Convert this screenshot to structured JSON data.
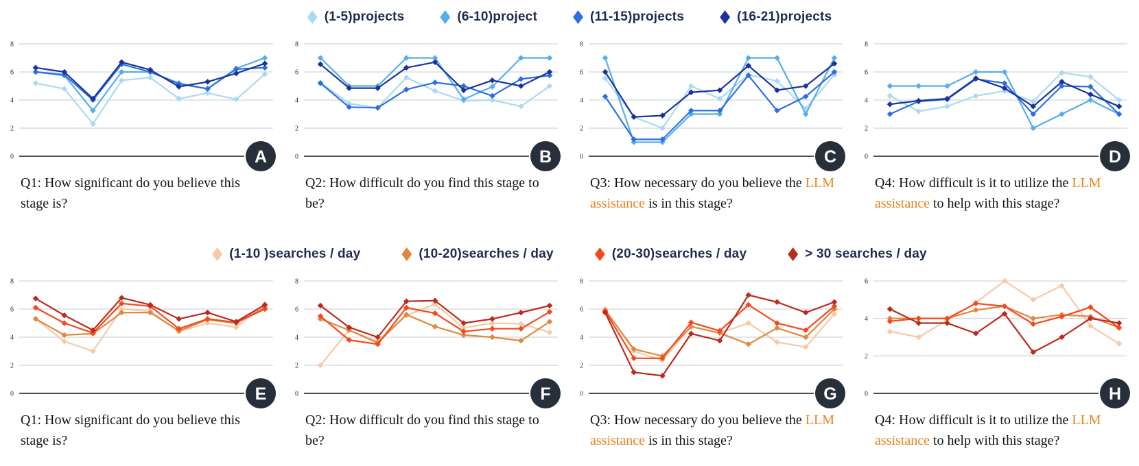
{
  "figure": {
    "accent_color": "#E8821C",
    "badge_bg": "#262F3A",
    "grid_color": "#D9DDE0",
    "axis_color": "#4F4F4F",
    "tick_color": "#2B2B2B"
  },
  "legends": [
    {
      "name": "projects",
      "items": [
        {
          "label": "(1-5)projects",
          "color": "#AADAF2"
        },
        {
          "label": "(6-10)project",
          "color": "#55AEE9"
        },
        {
          "label": "(11-15)projects",
          "color": "#2D6FE0"
        },
        {
          "label": "(16-21)projects",
          "color": "#1A339C"
        }
      ]
    },
    {
      "name": "searches",
      "items": [
        {
          "label": "(1-10 )searches / day",
          "color": "#F7C9A6"
        },
        {
          "label": "(10-20)searches / day",
          "color": "#E0883C"
        },
        {
          "label": "(20-30)searches / day",
          "color": "#F5481F"
        },
        {
          "label": "> 30 searches / day",
          "color": "#BB2A1C"
        }
      ]
    }
  ],
  "chart_data": [
    {
      "panel": "A",
      "type": "line",
      "ylim": [
        0,
        8
      ],
      "yticks": [
        8,
        6,
        4,
        2,
        0
      ],
      "xlabel": "",
      "ylabel": "",
      "grid": true,
      "caption_parts": [
        {
          "text": "Q1: How significant do you believe this stage is?",
          "accent": false
        }
      ],
      "series": [
        {
          "name": "(1-5)projects",
          "color": "#AADAF2",
          "values": [
            5.2,
            4.8,
            2.3,
            5.4,
            5.6,
            4.1,
            4.5,
            4.05,
            5.85
          ]
        },
        {
          "name": "(6-10)project",
          "color": "#55AEE9",
          "values": [
            6.0,
            5.75,
            3.25,
            6.0,
            6.0,
            5.2,
            4.8,
            6.25,
            7.0
          ]
        },
        {
          "name": "(11-15)projects",
          "color": "#2D6FE0",
          "values": [
            6.0,
            5.8,
            4.0,
            6.55,
            6.0,
            5.15,
            4.8,
            6.2,
            6.3
          ]
        },
        {
          "name": "(16-21)projects",
          "color": "#1A339C",
          "values": [
            6.3,
            6.0,
            4.1,
            6.7,
            6.15,
            4.95,
            5.3,
            5.9,
            6.6
          ]
        }
      ]
    },
    {
      "panel": "B",
      "type": "line",
      "ylim": [
        0,
        8
      ],
      "yticks": [
        8,
        6,
        4,
        2,
        0
      ],
      "xlabel": "",
      "ylabel": "",
      "grid": true,
      "caption_parts": [
        {
          "text": "Q2: How difficult do you find this stage to be?",
          "accent": false
        }
      ],
      "series": [
        {
          "name": "(1-5)projects",
          "color": "#AADAF2",
          "values": [
            5.25,
            3.75,
            3.45,
            5.6,
            4.65,
            3.95,
            4.0,
            3.55,
            5.0
          ]
        },
        {
          "name": "(6-10)project",
          "color": "#55AEE9",
          "values": [
            7.0,
            5.0,
            5.0,
            7.0,
            7.0,
            4.05,
            4.95,
            7.0,
            7.0
          ]
        },
        {
          "name": "(11-15)projects",
          "color": "#2D6FE0",
          "values": [
            5.2,
            3.5,
            3.45,
            4.75,
            5.25,
            5.0,
            4.3,
            5.5,
            5.75
          ]
        },
        {
          "name": "(16-21)projects",
          "color": "#1A339C",
          "values": [
            6.55,
            4.85,
            4.85,
            6.3,
            6.7,
            4.7,
            5.4,
            5.0,
            6.0
          ]
        }
      ]
    },
    {
      "panel": "C",
      "type": "line",
      "ylim": [
        0,
        8
      ],
      "yticks": [
        8,
        6,
        4,
        2,
        0
      ],
      "xlabel": "",
      "ylabel": "",
      "grid": true,
      "caption_parts": [
        {
          "text": "Q3: How necessary do you believe the ",
          "accent": false
        },
        {
          "text": "LLM assistance",
          "accent": true
        },
        {
          "text": " is in this stage?",
          "accent": false
        }
      ],
      "series": [
        {
          "name": "(1-5)projects",
          "color": "#AADAF2",
          "values": [
            5.55,
            2.8,
            2.0,
            5.0,
            4.1,
            5.8,
            5.35,
            3.4,
            5.8
          ]
        },
        {
          "name": "(6-10)project",
          "color": "#55AEE9",
          "values": [
            7.0,
            1.0,
            1.0,
            3.0,
            3.0,
            7.0,
            7.0,
            3.0,
            7.0
          ]
        },
        {
          "name": "(11-15)projects",
          "color": "#2D6FE0",
          "values": [
            4.25,
            1.2,
            1.2,
            3.25,
            3.25,
            5.75,
            3.25,
            4.25,
            6.0
          ]
        },
        {
          "name": "(16-21)projects",
          "color": "#1A339C",
          "values": [
            6.0,
            2.8,
            2.9,
            4.55,
            4.7,
            6.45,
            4.7,
            5.0,
            6.6
          ]
        }
      ]
    },
    {
      "panel": "D",
      "type": "line",
      "ylim": [
        0,
        8
      ],
      "yticks": [
        8,
        6,
        4,
        2,
        0
      ],
      "xlabel": "",
      "ylabel": "",
      "grid": true,
      "caption_parts": [
        {
          "text": "Q4: How difficult is it to utilize the ",
          "accent": false
        },
        {
          "text": "LLM assistance",
          "accent": true
        },
        {
          "text": " to help with this stage?",
          "accent": false
        }
      ],
      "series": [
        {
          "name": "(1-5)projects",
          "color": "#AADAF2",
          "values": [
            4.3,
            3.2,
            3.55,
            4.3,
            4.65,
            3.9,
            5.95,
            5.65,
            4.0
          ]
        },
        {
          "name": "(6-10)project",
          "color": "#55AEE9",
          "values": [
            5.0,
            5.0,
            5.0,
            6.0,
            6.0,
            2.0,
            3.0,
            4.0,
            3.0
          ]
        },
        {
          "name": "(11-15)projects",
          "color": "#2D6FE0",
          "values": [
            3.0,
            3.9,
            4.05,
            5.5,
            5.2,
            3.0,
            5.0,
            4.95,
            3.0
          ]
        },
        {
          "name": "(16-21)projects",
          "color": "#1A339C",
          "values": [
            3.7,
            3.95,
            4.1,
            5.55,
            4.85,
            3.55,
            5.3,
            4.4,
            3.55
          ]
        }
      ]
    },
    {
      "panel": "E",
      "type": "line",
      "ylim": [
        0,
        8
      ],
      "yticks": [
        8,
        6,
        4,
        2,
        0
      ],
      "xlabel": "",
      "ylabel": "",
      "grid": true,
      "caption_parts": [
        {
          "text": "Q1: How significant do you believe this stage is?",
          "accent": false
        }
      ],
      "series": [
        {
          "name": "(1-10 )searches / day",
          "color": "#F7C9A6",
          "values": [
            5.3,
            3.7,
            3.0,
            6.0,
            5.85,
            4.4,
            5.0,
            4.7,
            6.35
          ]
        },
        {
          "name": "(10-20)searches / day",
          "color": "#E0883C",
          "values": [
            5.3,
            4.15,
            4.25,
            5.75,
            5.75,
            4.45,
            5.25,
            5.0,
            6.1
          ]
        },
        {
          "name": "(20-30)searches / day",
          "color": "#F5481F",
          "values": [
            6.1,
            5.0,
            4.3,
            6.4,
            6.2,
            4.6,
            5.3,
            5.05,
            6.0
          ]
        },
        {
          "name": "> 30 searches / day",
          "color": "#BB2A1C",
          "values": [
            6.75,
            5.55,
            4.5,
            6.8,
            6.3,
            5.3,
            5.75,
            5.1,
            6.3
          ]
        }
      ]
    },
    {
      "panel": "F",
      "type": "line",
      "ylim": [
        0,
        8
      ],
      "yticks": [
        8,
        6,
        4,
        2,
        0
      ],
      "xlabel": "",
      "ylabel": "",
      "grid": true,
      "caption_parts": [
        {
          "text": "Q2: How difficult do you find this stage to be?",
          "accent": false
        }
      ],
      "series": [
        {
          "name": "(1-10 )searches / day",
          "color": "#F7C9A6",
          "values": [
            2.0,
            4.5,
            3.7,
            5.55,
            6.35,
            4.65,
            5.0,
            4.95,
            4.35
          ]
        },
        {
          "name": "(10-20)searches / day",
          "color": "#E0883C",
          "values": [
            5.3,
            4.5,
            3.6,
            5.6,
            4.75,
            4.15,
            4.0,
            3.75,
            5.1
          ]
        },
        {
          "name": "(20-30)searches / day",
          "color": "#F5481F",
          "values": [
            5.5,
            3.8,
            3.5,
            6.1,
            5.7,
            4.4,
            4.6,
            4.6,
            5.8
          ]
        },
        {
          "name": "> 30 searches / day",
          "color": "#BB2A1C",
          "values": [
            6.25,
            4.7,
            4.0,
            6.55,
            6.6,
            5.0,
            5.3,
            5.75,
            6.25
          ]
        }
      ]
    },
    {
      "panel": "G",
      "type": "line",
      "ylim": [
        0,
        8
      ],
      "yticks": [
        8,
        6,
        4,
        2,
        0
      ],
      "xlabel": "",
      "ylabel": "",
      "grid": true,
      "caption_parts": [
        {
          "text": "Q3: How necessary do you believe the ",
          "accent": false
        },
        {
          "text": "LLM assistance",
          "accent": true
        },
        {
          "text": " is in this stage?",
          "accent": false
        }
      ],
      "series": [
        {
          "name": "(1-10 )searches / day",
          "color": "#F7C9A6",
          "values": [
            6.0,
            3.0,
            2.35,
            4.75,
            4.3,
            5.0,
            3.65,
            3.3,
            5.65
          ]
        },
        {
          "name": "(10-20)searches / day",
          "color": "#E0883C",
          "values": [
            5.9,
            3.15,
            2.65,
            4.75,
            4.3,
            3.5,
            4.65,
            4.0,
            6.0
          ]
        },
        {
          "name": "(20-30)searches / day",
          "color": "#F5481F",
          "values": [
            5.85,
            2.5,
            2.5,
            5.05,
            4.45,
            6.3,
            5.0,
            4.5,
            6.2
          ]
        },
        {
          "name": "> 30 searches / day",
          "color": "#BB2A1C",
          "values": [
            5.75,
            1.5,
            1.25,
            4.25,
            3.75,
            7.0,
            6.5,
            5.75,
            6.5
          ]
        }
      ]
    },
    {
      "panel": "H",
      "type": "line",
      "ylim": [
        0,
        6
      ],
      "yticks": [
        6,
        4,
        2,
        0
      ],
      "xlabel": "",
      "ylabel": "",
      "grid": true,
      "caption_parts": [
        {
          "text": "Q4: How difficult is it to utilize the ",
          "accent": false
        },
        {
          "text": "LLM assistance",
          "accent": true
        },
        {
          "text": " to help with this stage?",
          "accent": false
        }
      ],
      "series": [
        {
          "name": "(1-10 )searches / day",
          "color": "#F7C9A6",
          "values": [
            3.3,
            3.0,
            3.9,
            4.85,
            6.0,
            5.0,
            5.75,
            3.6,
            2.65
          ]
        },
        {
          "name": "(10-20)searches / day",
          "color": "#E0883C",
          "values": [
            4.0,
            4.0,
            4.0,
            4.45,
            4.65,
            4.0,
            4.2,
            4.1,
            3.5
          ]
        },
        {
          "name": "(20-30)searches / day",
          "color": "#F5481F",
          "values": [
            3.85,
            4.0,
            4.0,
            4.8,
            4.65,
            3.7,
            4.1,
            4.6,
            3.5
          ]
        },
        {
          "name": "> 30 searches / day",
          "color": "#BB2A1C",
          "values": [
            4.5,
            3.75,
            3.75,
            3.2,
            4.25,
            2.2,
            3.0,
            4.0,
            3.75
          ]
        }
      ]
    }
  ]
}
